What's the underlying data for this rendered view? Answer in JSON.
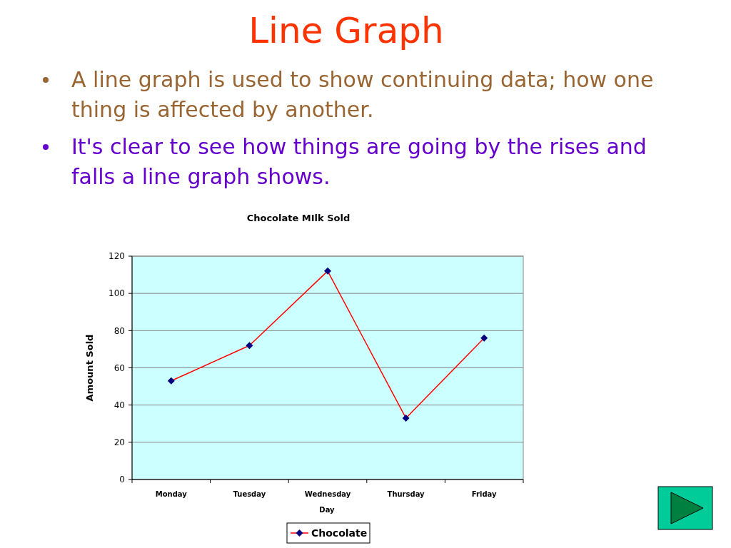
{
  "chart_data": {
    "type": "line",
    "title": "Line Graph",
    "subtitle": "Chocolate MIlk Sold",
    "annotations": [
      "A line graph is used to show continuing data; how one thing is affected by another.",
      "It's clear to see how things are going by the rises and falls a line graph shows."
    ],
    "xlabel": "Day",
    "ylabel": "Amount Sold",
    "categories": [
      "Monday",
      "Tuesday",
      "Wednesday",
      "Thursday",
      "Friday"
    ],
    "series": [
      {
        "name": "Chocolate",
        "color": "#ff0000",
        "values": [
          53,
          72,
          112,
          33,
          76
        ]
      }
    ],
    "ylim": [
      0,
      120
    ],
    "yticks": [
      0,
      20,
      40,
      60,
      80,
      100,
      120
    ],
    "grid": "y",
    "legend": "bottom",
    "marker": "diamond",
    "line_style": "solid"
  }
}
